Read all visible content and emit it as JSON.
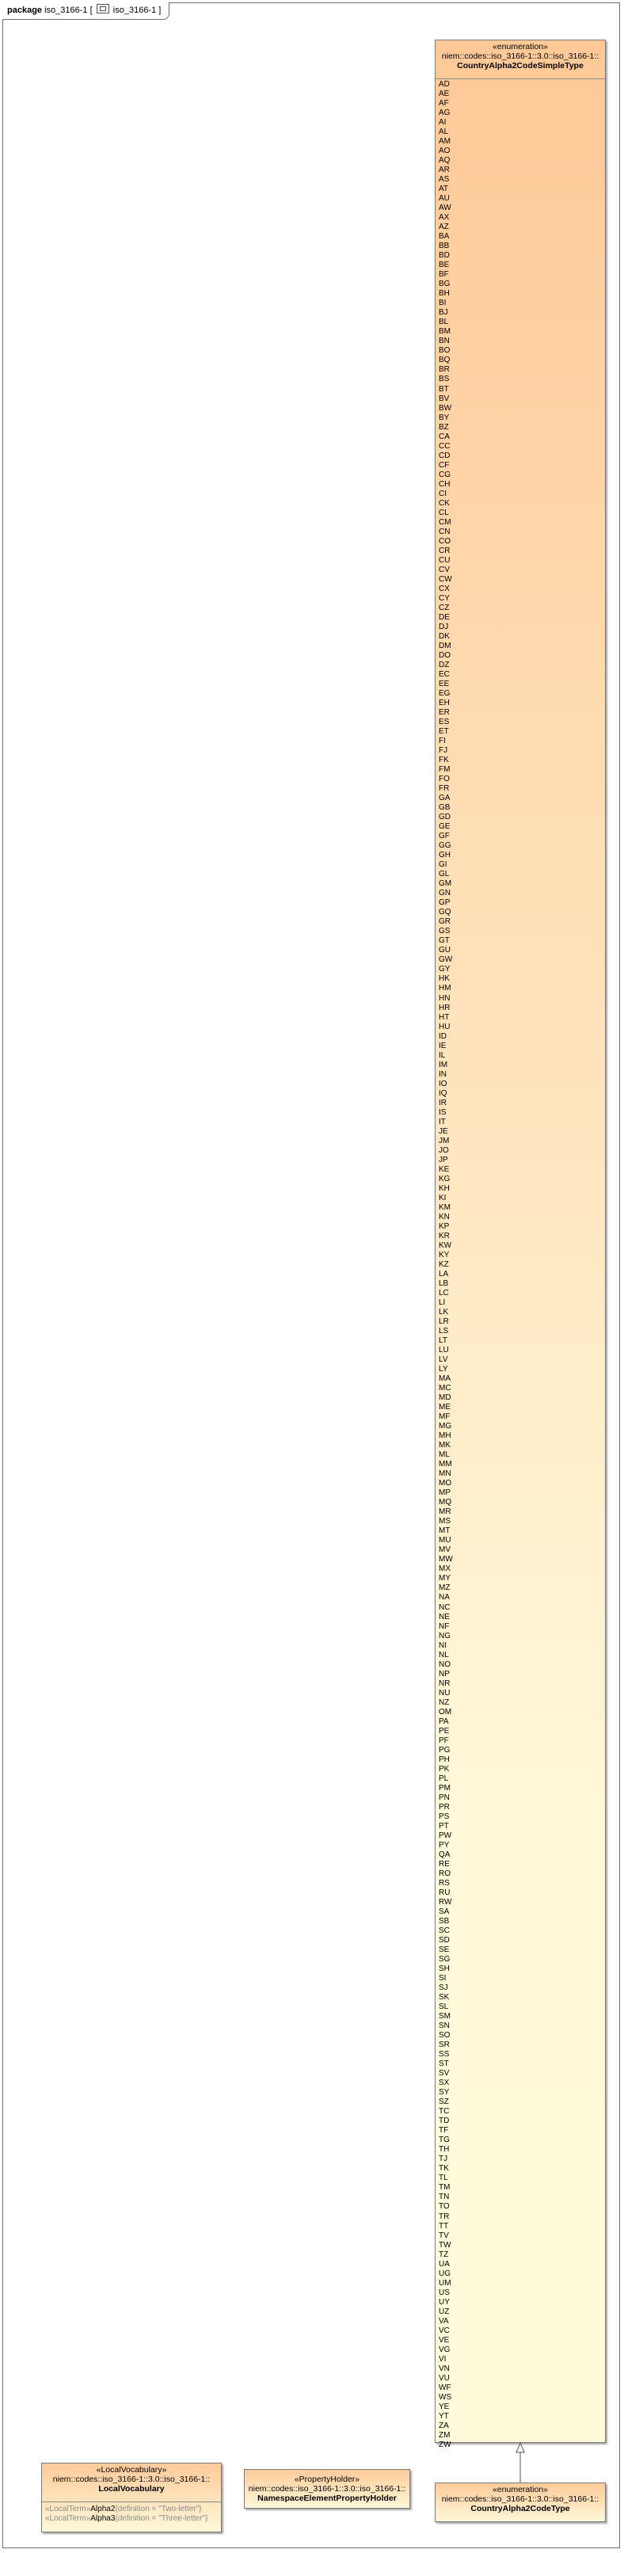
{
  "package_tab": {
    "keyword": "package",
    "name": "iso_3166-1",
    "diagram_name": "iso_3166-1"
  },
  "simple_type": {
    "stereotype": "«enumeration»",
    "namespace": "niem::codes::iso_3166-1::3.0::iso_3166-1::",
    "name": "CountryAlpha2CodeSimpleType",
    "literals": [
      "AD",
      "AE",
      "AF",
      "AG",
      "AI",
      "AL",
      "AM",
      "AO",
      "AQ",
      "AR",
      "AS",
      "AT",
      "AU",
      "AW",
      "AX",
      "AZ",
      "BA",
      "BB",
      "BD",
      "BE",
      "BF",
      "BG",
      "BH",
      "BI",
      "BJ",
      "BL",
      "BM",
      "BN",
      "BO",
      "BQ",
      "BR",
      "BS",
      "BT",
      "BV",
      "BW",
      "BY",
      "BZ",
      "CA",
      "CC",
      "CD",
      "CF",
      "CG",
      "CH",
      "CI",
      "CK",
      "CL",
      "CM",
      "CN",
      "CO",
      "CR",
      "CU",
      "CV",
      "CW",
      "CX",
      "CY",
      "CZ",
      "DE",
      "DJ",
      "DK",
      "DM",
      "DO",
      "DZ",
      "EC",
      "EE",
      "EG",
      "EH",
      "ER",
      "ES",
      "ET",
      "FI",
      "FJ",
      "FK",
      "FM",
      "FO",
      "FR",
      "GA",
      "GB",
      "GD",
      "GE",
      "GF",
      "GG",
      "GH",
      "GI",
      "GL",
      "GM",
      "GN",
      "GP",
      "GQ",
      "GR",
      "GS",
      "GT",
      "GU",
      "GW",
      "GY",
      "HK",
      "HM",
      "HN",
      "HR",
      "HT",
      "HU",
      "ID",
      "IE",
      "IL",
      "IM",
      "IN",
      "IO",
      "IQ",
      "IR",
      "IS",
      "IT",
      "JE",
      "JM",
      "JO",
      "JP",
      "KE",
      "KG",
      "KH",
      "KI",
      "KM",
      "KN",
      "KP",
      "KR",
      "KW",
      "KY",
      "KZ",
      "LA",
      "LB",
      "LC",
      "LI",
      "LK",
      "LR",
      "LS",
      "LT",
      "LU",
      "LV",
      "LY",
      "MA",
      "MC",
      "MD",
      "ME",
      "MF",
      "MG",
      "MH",
      "MK",
      "ML",
      "MM",
      "MN",
      "MO",
      "MP",
      "MQ",
      "MR",
      "MS",
      "MT",
      "MU",
      "MV",
      "MW",
      "MX",
      "MY",
      "MZ",
      "NA",
      "NC",
      "NE",
      "NF",
      "NG",
      "NI",
      "NL",
      "NO",
      "NP",
      "NR",
      "NU",
      "NZ",
      "OM",
      "PA",
      "PE",
      "PF",
      "PG",
      "PH",
      "PK",
      "PL",
      "PM",
      "PN",
      "PR",
      "PS",
      "PT",
      "PW",
      "PY",
      "QA",
      "RE",
      "RO",
      "RS",
      "RU",
      "RW",
      "SA",
      "SB",
      "SC",
      "SD",
      "SE",
      "SG",
      "SH",
      "SI",
      "SJ",
      "SK",
      "SL",
      "SM",
      "SN",
      "SO",
      "SR",
      "SS",
      "ST",
      "SV",
      "SX",
      "SY",
      "SZ",
      "TC",
      "TD",
      "TF",
      "TG",
      "TH",
      "TJ",
      "TK",
      "TL",
      "TM",
      "TN",
      "TO",
      "TR",
      "TT",
      "TV",
      "TW",
      "TZ",
      "UA",
      "UG",
      "UM",
      "US",
      "UY",
      "UZ",
      "VA",
      "VC",
      "VE",
      "VG",
      "VI",
      "VN",
      "VU",
      "WF",
      "WS",
      "YE",
      "YT",
      "ZA",
      "ZM",
      "ZW"
    ]
  },
  "code_type": {
    "stereotype": "«enumeration»",
    "namespace": "niem::codes::iso_3166-1::3.0::iso_3166-1::",
    "name": "CountryAlpha2CodeType"
  },
  "local_vocabulary": {
    "stereotype": "«LocalVocabulary»",
    "namespace": "niem::codes::iso_3166-1::3.0::iso_3166-1::",
    "name": "LocalVocabulary",
    "attributes": [
      {
        "prefix": "«LocalTerm»",
        "name": "Alpha2",
        "definition": "{definition = \"Two-letter\"}"
      },
      {
        "prefix": "«LocalTerm»",
        "name": "Alpha3",
        "definition": "{definition = \"Three-letter\"}"
      }
    ]
  },
  "property_holder": {
    "stereotype": "«PropertyHolder»",
    "namespace": "niem::codes::iso_3166-1::3.0::iso_3166-1::",
    "name": "NamespaceElementPropertyHolder"
  },
  "colors": {
    "box_top": "#fec997",
    "box_bottom": "#fffbda",
    "border": "#7a7a7a"
  }
}
